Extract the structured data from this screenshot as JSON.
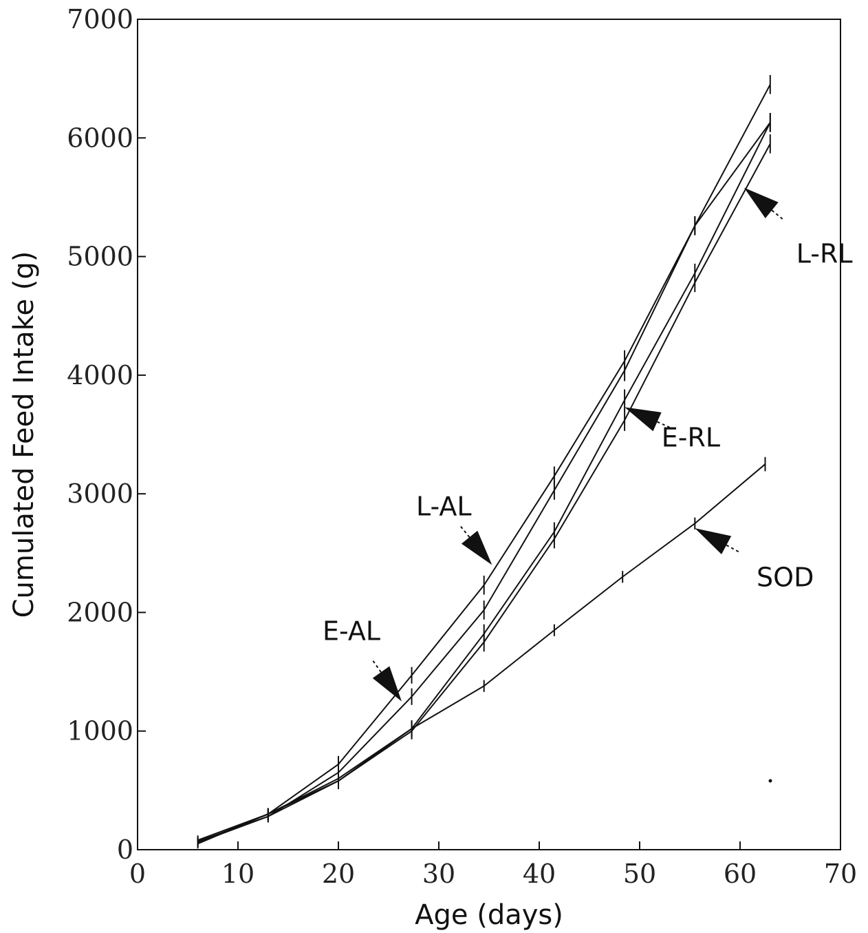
{
  "chart_data": {
    "type": "line",
    "title": "",
    "xlabel": "Age (days)",
    "ylabel": "Cumulated Feed Intake (g)",
    "xlim": [
      0,
      70
    ],
    "ylim": [
      0,
      7000
    ],
    "xticks": [
      0,
      10,
      20,
      30,
      40,
      50,
      60,
      70
    ],
    "yticks": [
      0,
      1000,
      2000,
      3000,
      4000,
      5000,
      6000,
      7000
    ],
    "grid": false,
    "line_color": "#111111",
    "series": [
      {
        "name": "L-AL",
        "x": [
          6,
          13,
          20,
          27.3,
          34.5,
          41.5,
          48.5,
          55.5,
          63
        ],
        "y": [
          80,
          300,
          720,
          1470,
          2230,
          3150,
          4120,
          5260,
          6450
        ],
        "err": [
          40,
          50,
          70,
          70,
          80,
          80,
          90,
          80,
          80
        ]
      },
      {
        "name": "E-AL",
        "x": [
          6,
          13,
          20,
          27.3,
          34.5,
          41.5,
          48.5,
          55.5,
          63
        ],
        "y": [
          70,
          280,
          650,
          1290,
          2020,
          3030,
          4040,
          5260,
          6130
        ],
        "err": [
          40,
          50,
          70,
          70,
          80,
          80,
          90,
          80,
          80
        ]
      },
      {
        "name": "E-RL",
        "x": [
          6,
          13,
          20,
          27.3,
          34.5,
          41.5,
          48.5,
          55.5,
          63
        ],
        "y": [
          60,
          300,
          600,
          1020,
          1820,
          2680,
          3790,
          4860,
          6130
        ],
        "err": [
          40,
          50,
          70,
          70,
          80,
          80,
          90,
          80,
          80
        ]
      },
      {
        "name": "L-RL",
        "x": [
          6,
          13,
          20,
          27.3,
          34.5,
          41.5,
          48.5,
          55.5,
          63
        ],
        "y": [
          60,
          280,
          580,
          1000,
          1750,
          2620,
          3620,
          4780,
          5950
        ],
        "err": [
          40,
          50,
          70,
          70,
          80,
          80,
          90,
          80,
          80
        ]
      },
      {
        "name": "SOD",
        "x": [
          6,
          13,
          20,
          27.3,
          34.5,
          41.5,
          48.3,
          55.5,
          62.5
        ],
        "y": [
          50,
          300,
          580,
          1020,
          1380,
          1850,
          2300,
          2750,
          3250
        ],
        "err": [
          40,
          50,
          60,
          70,
          50,
          50,
          50,
          50,
          60
        ]
      }
    ],
    "annotations": [
      {
        "text": "L-AL",
        "tip_x": 35.3,
        "tip_y": 2400,
        "text_x": 30.5,
        "text_y": 2900
      },
      {
        "text": "E-AL",
        "tip_x": 26.3,
        "tip_y": 1250,
        "text_x": 21.3,
        "text_y": 1850
      },
      {
        "text": "E-RL",
        "tip_x": 48.5,
        "tip_y": 3730,
        "text_x": 55.1,
        "text_y": 3480
      },
      {
        "text": "L-RL",
        "tip_x": 60.4,
        "tip_y": 5580,
        "text_x": 68.4,
        "text_y": 5030
      },
      {
        "text": "SOD",
        "tip_x": 55.5,
        "tip_y": 2710,
        "text_x": 64.5,
        "text_y": 2300
      }
    ]
  }
}
